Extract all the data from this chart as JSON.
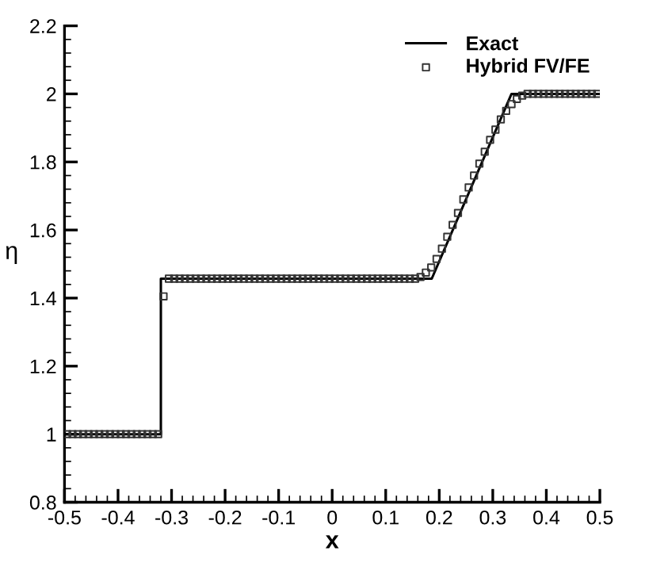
{
  "chart_data": {
    "type": "line",
    "xlabel": "x",
    "ylabel": "η",
    "xlim": [
      -0.5,
      0.5
    ],
    "xticks": [
      -0.5,
      -0.4,
      -0.3,
      -0.2,
      -0.1,
      0,
      0.1,
      0.2,
      0.3,
      0.4,
      0.5
    ],
    "ylim": [
      0.8,
      2.2
    ],
    "yticks": [
      0.8,
      1,
      1.2,
      1.4,
      1.6,
      1.8,
      2,
      2.2
    ],
    "grid": false,
    "legend": "top right",
    "series": [
      {
        "name": "Exact",
        "color": "#000000",
        "line_style": "solid",
        "marker": "none",
        "x": [
          -0.5,
          -0.32,
          -0.32,
          0.186,
          0.335,
          0.5
        ],
        "values": [
          1,
          1,
          1.457,
          1.457,
          2,
          2
        ]
      },
      {
        "name": "Hybrid FV/FE",
        "type": "scatter",
        "color": "#333333",
        "marker": "square",
        "x": [
          -0.495,
          -0.485,
          -0.475,
          -0.465,
          -0.455,
          -0.445,
          -0.435,
          -0.425,
          -0.415,
          -0.405,
          -0.395,
          -0.385,
          -0.375,
          -0.365,
          -0.355,
          -0.345,
          -0.335,
          -0.325,
          -0.315,
          -0.305,
          -0.295,
          -0.285,
          -0.275,
          -0.265,
          -0.255,
          -0.245,
          -0.235,
          -0.225,
          -0.215,
          -0.205,
          -0.195,
          -0.185,
          -0.175,
          -0.165,
          -0.155,
          -0.145,
          -0.135,
          -0.125,
          -0.115,
          -0.105,
          -0.095,
          -0.085,
          -0.075,
          -0.065,
          -0.055,
          -0.045,
          -0.035,
          -0.025,
          -0.015,
          -0.005,
          0.005,
          0.015,
          0.025,
          0.035,
          0.045,
          0.055,
          0.065,
          0.075,
          0.085,
          0.095,
          0.105,
          0.115,
          0.125,
          0.135,
          0.145,
          0.155,
          0.165,
          0.175,
          0.185,
          0.195,
          0.205,
          0.215,
          0.225,
          0.235,
          0.245,
          0.255,
          0.265,
          0.275,
          0.285,
          0.295,
          0.305,
          0.315,
          0.325,
          0.335,
          0.345,
          0.355,
          0.365,
          0.375,
          0.385,
          0.395,
          0.405,
          0.415,
          0.425,
          0.435,
          0.445,
          0.455,
          0.465,
          0.475,
          0.485,
          0.495
        ],
        "values": [
          1,
          1,
          1,
          1,
          1,
          1,
          1,
          1,
          1,
          1,
          1,
          1,
          1,
          1,
          1,
          1,
          1,
          1,
          1.405,
          1.457,
          1.457,
          1.457,
          1.457,
          1.457,
          1.457,
          1.457,
          1.457,
          1.457,
          1.457,
          1.457,
          1.457,
          1.457,
          1.457,
          1.457,
          1.457,
          1.457,
          1.457,
          1.457,
          1.457,
          1.457,
          1.457,
          1.457,
          1.457,
          1.457,
          1.457,
          1.457,
          1.457,
          1.457,
          1.457,
          1.457,
          1.457,
          1.457,
          1.457,
          1.457,
          1.457,
          1.457,
          1.457,
          1.457,
          1.457,
          1.457,
          1.457,
          1.457,
          1.457,
          1.457,
          1.457,
          1.457,
          1.462,
          1.475,
          1.49,
          1.515,
          1.545,
          1.58,
          1.615,
          1.65,
          1.69,
          1.725,
          1.76,
          1.795,
          1.83,
          1.865,
          1.895,
          1.925,
          1.95,
          1.97,
          1.985,
          1.995,
          2,
          2,
          2,
          2,
          2,
          2,
          2,
          2,
          2,
          2,
          2,
          2,
          2,
          2
        ]
      }
    ]
  }
}
